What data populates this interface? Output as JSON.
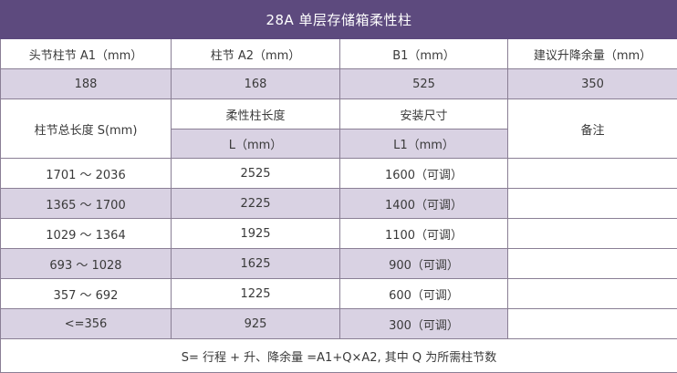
{
  "title": "28A 单层存储箱柔性柱",
  "header": {
    "a1": "头节柱节 A1（mm）",
    "a2": "柱节 A2（mm）",
    "b1": "B1（mm）",
    "lift": "建议升降余量（mm）"
  },
  "base_values": {
    "a1": "188",
    "a2": "168",
    "b1": "525",
    "lift": "350"
  },
  "sub_header": {
    "total_length": "柱节总长度 S(mm)",
    "flex_length": "柔性柱长度",
    "flex_unit": "L（mm）",
    "install_size": "安装尺寸",
    "install_unit": "L1（mm）",
    "remark": "备注"
  },
  "rows": [
    {
      "s": "1701 ～ 2036",
      "l": "2525",
      "l1": "1600（可调）",
      "remark": ""
    },
    {
      "s": "1365 ～ 1700",
      "l": "2225",
      "l1": "1400（可调）",
      "remark": ""
    },
    {
      "s": "1029 ～ 1364",
      "l": "1925",
      "l1": "1100（可调）",
      "remark": ""
    },
    {
      "s": "693 ～ 1028",
      "l": "1625",
      "l1": "900（可调）",
      "remark": ""
    },
    {
      "s": "357 ～ 692",
      "l": "1225",
      "l1": "600（可调）",
      "remark": ""
    },
    {
      "s": "<=356",
      "l": "925",
      "l1": "300（可调）",
      "remark": ""
    }
  ],
  "footnote": "S= 行程 + 升、降余量 =A1+Q×A2, 其中 Q 为所需柱节数",
  "colors": {
    "title_bg": "#5d4a7e",
    "row_shade": "#d9d2e3",
    "border": "#8a7f95"
  }
}
